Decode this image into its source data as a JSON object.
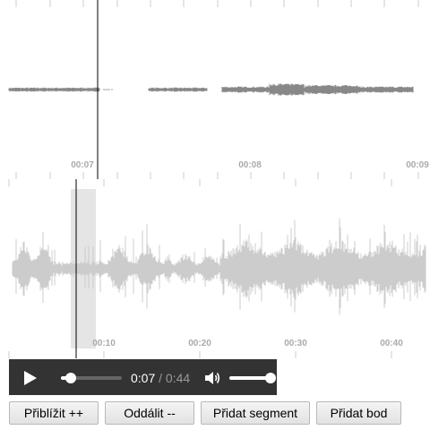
{
  "zoomview": {
    "time_labels": [
      "00:07",
      "00:08",
      "00:09"
    ]
  },
  "overview": {
    "time_labels": [
      "00:10",
      "00:20",
      "00:30",
      "00:40"
    ]
  },
  "player": {
    "current_time": "0:07",
    "separator": " / ",
    "duration": "0:44",
    "progress_fraction": 0.16,
    "volume_fraction": 1.0,
    "play_icon": "play-icon",
    "volume_icon": "volume-icon"
  },
  "buttons": {
    "zoom_in": "Přiblížit ++",
    "zoom_out": "Oddálit --",
    "add_segment": "Přidat segment",
    "add_point": "Přidat bod"
  },
  "colors": {
    "waveform_zoom": "#888888",
    "waveform_overview": "#cccccc",
    "highlight": "#e5e5e5",
    "playhead": "#000000",
    "player_bg": "#333333"
  }
}
